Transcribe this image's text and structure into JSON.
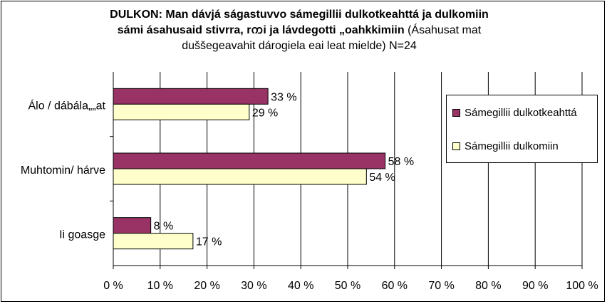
{
  "chart_data": {
    "type": "bar",
    "orientation": "horizontal",
    "title_bold_1": "DULKON: Man dávjá ságastuvvo sámegillii dulkotkeahttá ja dulkomiin",
    "title_bold_2": "sámi ásahusaid stivrra, rᨠi ja lávdegotti „oahkkimiin",
    "title_normal_2": " (Ásahusat mat",
    "title_normal_3": "duššegeavahit dárogiela eai leat mielde) N=24",
    "categories": [
      "Álo / dábála„„at",
      "Muhtomin/ hárve",
      "Ii goasge"
    ],
    "series": [
      {
        "name": "Sámegillii dulkotkeahttá",
        "color": "#993366",
        "values": [
          33,
          58,
          8
        ],
        "labels": [
          "33 %",
          "58 %",
          "8 %"
        ]
      },
      {
        "name": "Sámegillii dulkomiin",
        "color": "#FFFFCC",
        "values": [
          29,
          54,
          17
        ],
        "labels": [
          "29 %",
          "54 %",
          "17 %"
        ]
      }
    ],
    "xlim": [
      0,
      100
    ],
    "xticks": [
      0,
      10,
      20,
      30,
      40,
      50,
      60,
      70,
      80,
      90,
      100
    ],
    "xtick_labels": [
      "0 %",
      "10 %",
      "20 %",
      "30 %",
      "40 %",
      "50 %",
      "60 %",
      "70 %",
      "80 %",
      "90 %",
      "100 %"
    ],
    "grid": "vertical",
    "legend_position": "right"
  }
}
